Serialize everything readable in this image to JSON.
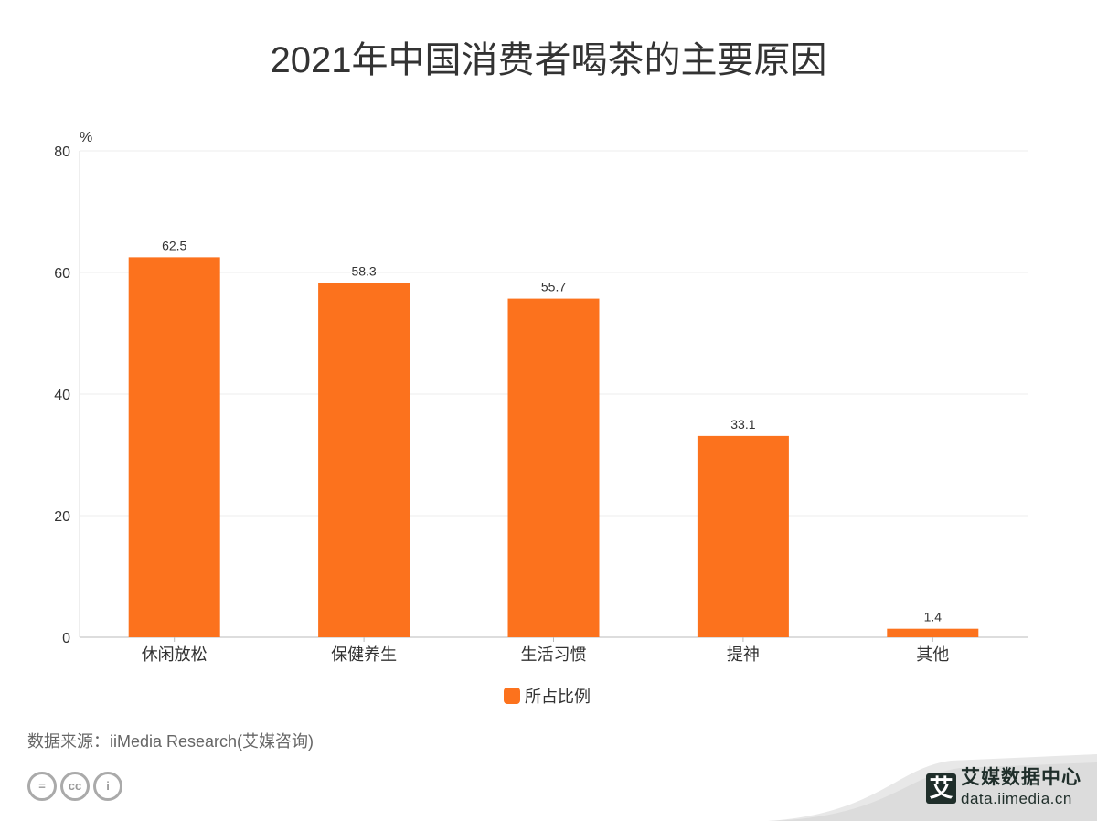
{
  "chart_data": {
    "type": "bar",
    "title": "2021年中国消费者喝茶的主要原因",
    "ylabel": "%",
    "xlabel": "",
    "ylim": [
      0,
      80
    ],
    "yticks": [
      "0",
      "20",
      "40",
      "60",
      "80"
    ],
    "grid": true,
    "legend_position": "bottom",
    "categories": [
      "休闲放松",
      "保健养生",
      "生活习惯",
      "提神",
      "其他"
    ],
    "series": [
      {
        "name": "所占比例",
        "values": [
          62.5,
          58.3,
          55.7,
          33.1,
          1.4
        ],
        "color": "#fc721d"
      }
    ]
  },
  "footer": {
    "source": "数据来源：iiMedia Research(艾媒咨询)",
    "license_icons": [
      "equals-icon",
      "cc-icon",
      "person-icon"
    ],
    "license_glyphs": [
      "=",
      "cc",
      "i"
    ]
  },
  "brand": {
    "logo_char": "艾",
    "name": "艾媒数据中心",
    "url": "data.iimedia.cn"
  }
}
